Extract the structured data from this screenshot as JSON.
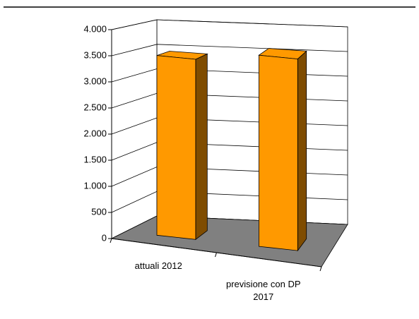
{
  "chart_data": {
    "type": "bar3d",
    "categories": [
      "attuali 2012",
      "previsione con DP 2017"
    ],
    "values": [
      3500,
      3700
    ],
    "color": "#ff9900",
    "ylim": [
      0,
      4000
    ],
    "yticks": [
      0,
      500,
      {
        "value": 1000,
        "label": "1.000"
      },
      {
        "value": 1500,
        "label": "1.500"
      },
      {
        "value": 2000,
        "label": "2.000"
      },
      {
        "value": 2500,
        "label": "2.500"
      },
      {
        "value": 3000,
        "label": "3.000"
      },
      {
        "value": 3500,
        "label": "3.500"
      },
      {
        "value": 4000,
        "label": "4.000"
      }
    ],
    "grid": true
  }
}
